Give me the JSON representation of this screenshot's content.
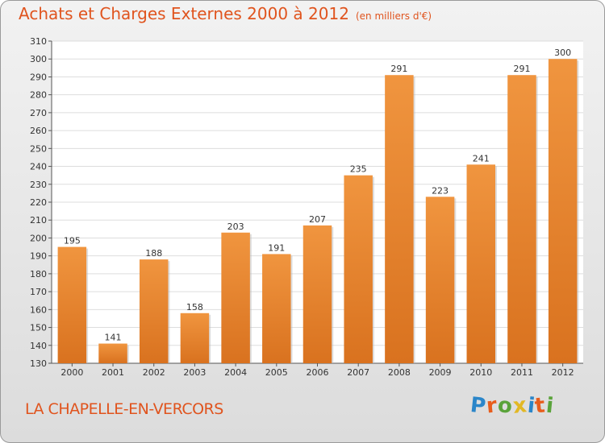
{
  "title": "Achats et Charges Externes 2000 à 2012",
  "subtitle": "(en milliers d'€)",
  "commune": "LA CHAPELLE-EN-VERCORS",
  "logo": {
    "letters": [
      "P",
      "r",
      "o",
      "x",
      "i",
      "t",
      "i"
    ],
    "colors": [
      "#2b86c9",
      "#e85d1c",
      "#5aa33a",
      "#e2b824",
      "#2b86c9",
      "#e85d1c",
      "#5aa33a"
    ]
  },
  "colors": {
    "bar": "#f0953f",
    "bar_dark": "#d9721f",
    "title": "#e0541e"
  },
  "chart_data": {
    "type": "bar",
    "categories": [
      "2000",
      "2001",
      "2002",
      "2003",
      "2004",
      "2005",
      "2006",
      "2007",
      "2008",
      "2009",
      "2010",
      "2011",
      "2012"
    ],
    "values": [
      195,
      141,
      188,
      158,
      203,
      191,
      207,
      235,
      291,
      223,
      241,
      291,
      300
    ],
    "ylim": [
      130,
      310
    ],
    "yticks": [
      130,
      140,
      150,
      160,
      170,
      180,
      190,
      200,
      210,
      220,
      230,
      240,
      250,
      260,
      270,
      280,
      290,
      300,
      310
    ],
    "grid": true
  }
}
